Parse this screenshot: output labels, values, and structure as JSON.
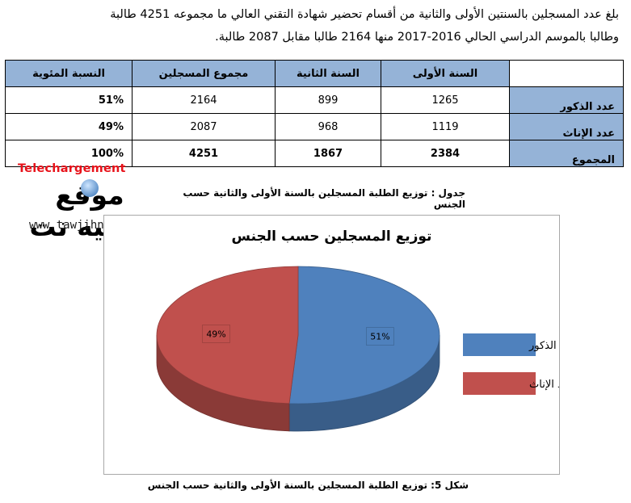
{
  "intro": {
    "line1": "بلغ عدد المسجلين بالسنتين الأولى والثانية من أقسام تحضير شهادة التقني العالي ما مجموعه 4251 طالبة",
    "line2": "وطالبا بالموسم الدراسي الحالي 2016-2017 منها 2164 طالبا مقابل 2087 طالبة."
  },
  "table": {
    "headers": {
      "corner": "",
      "first_year": "السنة الأولى",
      "second_year": "السنة الثانية",
      "total_enrolled": "مجموع المسجلين",
      "percentage": "النسبة المئوية"
    },
    "rows": [
      {
        "label": "عدد الذكور",
        "first_year": "1265",
        "second_year": "899",
        "total": "2164",
        "percentage": "51%"
      },
      {
        "label": "عدد الإناث",
        "first_year": "1119",
        "second_year": "968",
        "total": "2087",
        "percentage": "49%"
      },
      {
        "label": "المجموع",
        "first_year": "2384",
        "second_year": "1867",
        "total": "4251",
        "percentage": "100%"
      }
    ]
  },
  "table_caption": "جدول : توزيع الطلبة المسجلين بالسنة الأولى والثانية حسب الجنس",
  "watermark": {
    "top_text": "Telechargement",
    "arabic_name": "موقع توجيه نت",
    "url": "www.tawjihnet.net"
  },
  "chart_data": {
    "type": "pie",
    "title": "توزيع المسجلين حسب الجنس",
    "slices": [
      {
        "name": "عدد الذكور",
        "value": 51,
        "label": "51%",
        "color": "#4f81bd"
      },
      {
        "name": "عدد الإناث",
        "value": 49,
        "label": "49%",
        "color": "#c0504d"
      }
    ],
    "legend_position": "right",
    "three_d": true
  },
  "figure_caption": "شكل 5: توزيع الطلبة المسجلين بالسنة الأولى والثانية حسب الجنس"
}
